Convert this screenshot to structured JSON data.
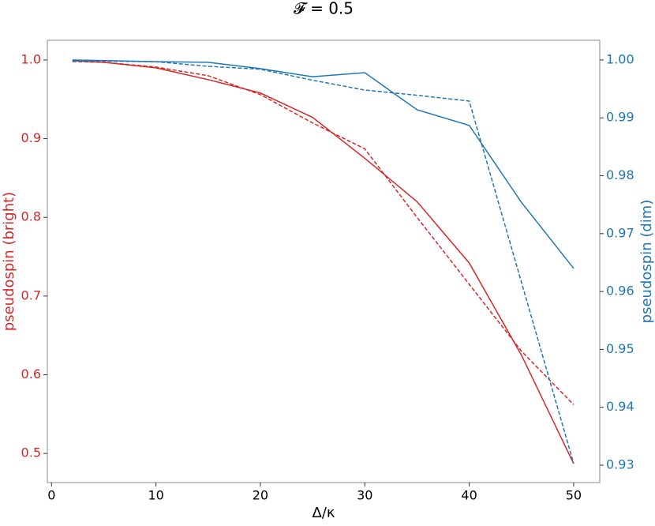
{
  "chart_data": {
    "type": "line",
    "title": "𝓕 = 0.5",
    "x_label": "Δ/κ",
    "y_label": "pseudospin (bright)",
    "y2_label": "pseudospin (dim)",
    "y_color": "#d62728",
    "y2_color": "#1f77b4",
    "x": [
      2,
      5,
      10,
      15,
      20,
      25,
      30,
      35,
      40,
      45,
      50
    ],
    "series": [
      {
        "color": "#d62728",
        "dashed": false,
        "values": [
          0.999,
          0.997,
          0.99,
          0.975,
          0.958,
          0.927,
          0.875,
          0.82,
          0.742,
          0.625,
          0.487
        ]
      },
      {
        "color": "#d62728",
        "dashed": true,
        "values": [
          0.998,
          0.997,
          0.991,
          0.98,
          0.956,
          0.92,
          0.887,
          0.8,
          0.715,
          0.63,
          0.562
        ]
      },
      {
        "color": "#1f77b4",
        "dashed": false,
        "axis": "y2",
        "values": [
          1.0,
          0.9999,
          0.9997,
          0.9996,
          0.9985,
          0.9971,
          0.9978,
          0.9914,
          0.9887,
          0.9754,
          0.964
        ]
      },
      {
        "color": "#1f77b4",
        "dashed": true,
        "axis": "y2",
        "values": [
          0.9998,
          0.9998,
          0.9997,
          0.9989,
          0.9984,
          0.9965,
          0.9948,
          0.9939,
          0.9929,
          0.9616,
          0.9303
        ]
      }
    ],
    "xlim": [
      -0.4,
      52.5
    ],
    "xticks": [
      0,
      10,
      20,
      30,
      40,
      50
    ],
    "ylim": [
      0.463,
      1.025
    ],
    "yticks": [
      0.5,
      0.6,
      0.7,
      0.8,
      0.9,
      {
        "value": 1,
        "label": "1.0"
      }
    ],
    "y2lim": [
      0.927,
      1.0034
    ],
    "y2ticks": [
      0.93,
      0.94,
      0.95,
      0.96,
      0.97,
      0.98,
      0.99,
      {
        "value": 1,
        "label": "1.00"
      }
    ],
    "grid": false
  }
}
